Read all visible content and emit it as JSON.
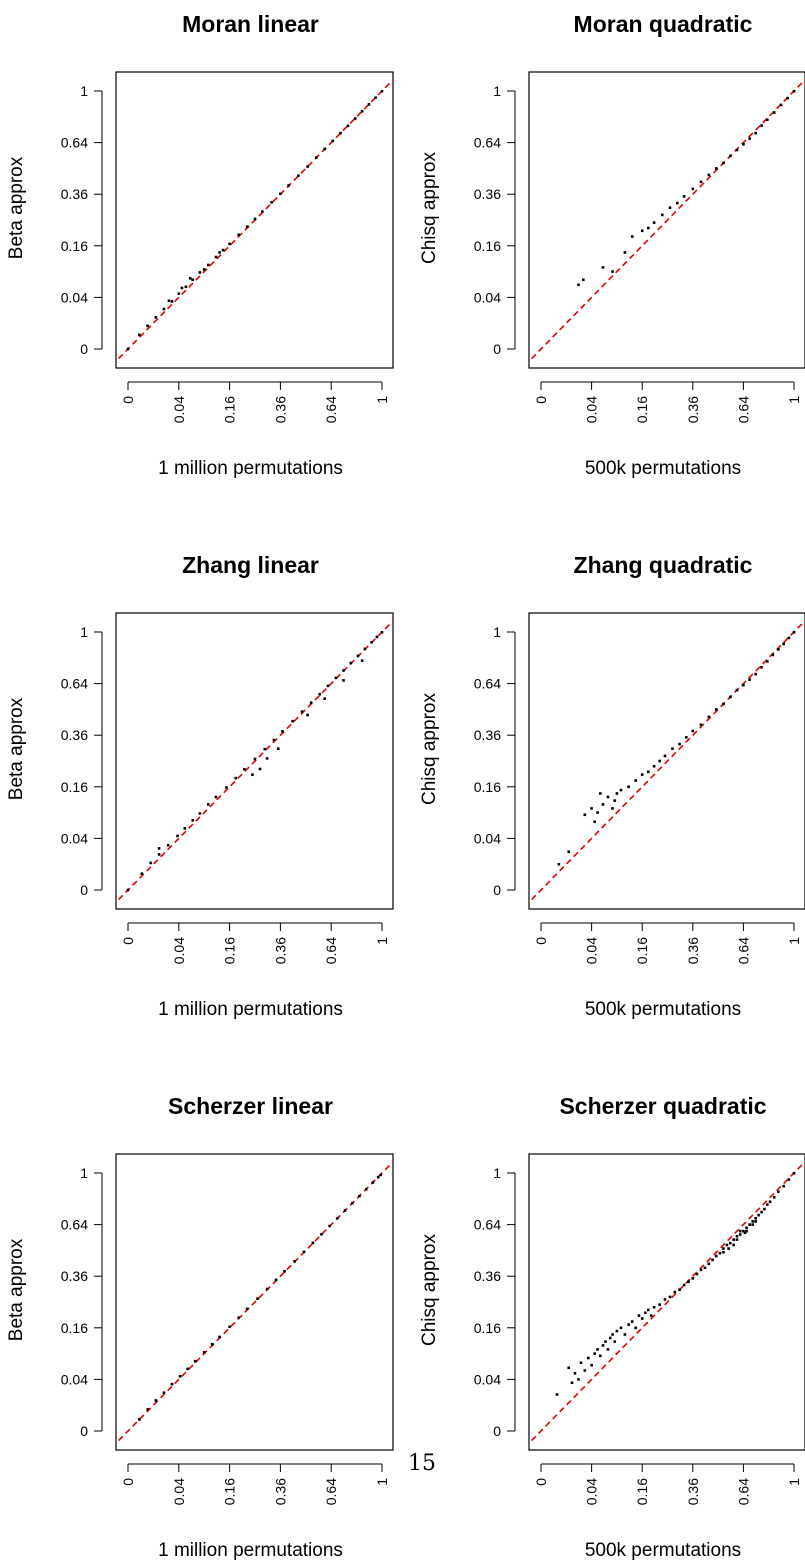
{
  "page_number": "15",
  "chart_data": [
    {
      "type": "scatter",
      "title": "Moran linear",
      "xlabel": "1 million permutations",
      "ylabel": "Beta approx",
      "scale": "sqrt",
      "xlim": [
        0,
        1
      ],
      "ylim": [
        0,
        1
      ],
      "x_ticks": [
        "0",
        "0.04",
        "0.16",
        "0.36",
        "0.64",
        "1"
      ],
      "y_ticks": [
        "0",
        "0.04",
        "0.16",
        "0.36",
        "0.64",
        "1"
      ],
      "reference_line": {
        "style": "dashed",
        "color": "#e00000",
        "slope": 1,
        "intercept": 0
      },
      "point_color": "#000000",
      "points": [
        [
          0.0,
          0.0
        ],
        [
          0.002,
          0.003
        ],
        [
          0.006,
          0.008
        ],
        [
          0.012,
          0.015
        ],
        [
          0.02,
          0.024
        ],
        [
          0.03,
          0.034
        ],
        [
          0.04,
          0.046
        ],
        [
          0.052,
          0.058
        ],
        [
          0.065,
          0.072
        ],
        [
          0.08,
          0.088
        ],
        [
          0.1,
          0.106
        ],
        [
          0.12,
          0.127
        ],
        [
          0.14,
          0.147
        ],
        [
          0.16,
          0.166
        ],
        [
          0.19,
          0.196
        ],
        [
          0.22,
          0.225
        ],
        [
          0.25,
          0.254
        ],
        [
          0.28,
          0.284
        ],
        [
          0.32,
          0.323
        ],
        [
          0.36,
          0.362
        ],
        [
          0.4,
          0.402
        ],
        [
          0.45,
          0.451
        ],
        [
          0.5,
          0.5
        ],
        [
          0.55,
          0.551
        ],
        [
          0.6,
          0.601
        ],
        [
          0.65,
          0.651
        ],
        [
          0.7,
          0.7
        ],
        [
          0.75,
          0.748
        ],
        [
          0.8,
          0.798
        ],
        [
          0.85,
          0.849
        ],
        [
          0.9,
          0.899
        ],
        [
          0.95,
          0.949
        ],
        [
          1.0,
          0.998
        ],
        [
          0.026,
          0.035
        ],
        [
          0.045,
          0.056
        ],
        [
          0.09,
          0.095
        ],
        [
          0.13,
          0.14
        ],
        [
          0.06,
          0.075
        ]
      ]
    },
    {
      "type": "scatter",
      "title": "Moran quadratic",
      "xlabel": "500k permutations",
      "ylabel": "Chisq approx",
      "scale": "sqrt",
      "xlim": [
        0,
        1
      ],
      "ylim": [
        0,
        1
      ],
      "x_ticks": [
        "0",
        "0.04",
        "0.16",
        "0.36",
        "0.64",
        "1"
      ],
      "y_ticks": [
        "0",
        "0.04",
        "0.16",
        "0.36",
        "0.64",
        "1"
      ],
      "reference_line": {
        "style": "dashed",
        "color": "#e00000",
        "slope": 1,
        "intercept": 0
      },
      "point_color": "#000000",
      "points": [
        [
          0.022,
          0.062
        ],
        [
          0.028,
          0.072
        ],
        [
          0.06,
          0.1
        ],
        [
          0.08,
          0.09
        ],
        [
          0.11,
          0.14
        ],
        [
          0.13,
          0.19
        ],
        [
          0.16,
          0.21
        ],
        [
          0.18,
          0.22
        ],
        [
          0.2,
          0.24
        ],
        [
          0.23,
          0.27
        ],
        [
          0.26,
          0.3
        ],
        [
          0.29,
          0.32
        ],
        [
          0.32,
          0.35
        ],
        [
          0.36,
          0.385
        ],
        [
          0.4,
          0.42
        ],
        [
          0.44,
          0.455
        ],
        [
          0.48,
          0.49
        ],
        [
          0.52,
          0.52
        ],
        [
          0.56,
          0.56
        ],
        [
          0.6,
          0.595
        ],
        [
          0.64,
          0.63
        ],
        [
          0.68,
          0.665
        ],
        [
          0.72,
          0.7
        ],
        [
          0.76,
          0.75
        ],
        [
          0.8,
          0.79
        ],
        [
          0.85,
          0.84
        ],
        [
          0.9,
          0.895
        ],
        [
          0.95,
          0.945
        ],
        [
          1.0,
          0.998
        ]
      ]
    },
    {
      "type": "scatter",
      "title": "Zhang linear",
      "xlabel": "1 million permutations",
      "ylabel": "Beta approx",
      "scale": "sqrt",
      "xlim": [
        0,
        1
      ],
      "ylim": [
        0,
        1
      ],
      "x_ticks": [
        "0",
        "0.04",
        "0.16",
        "0.36",
        "0.64",
        "1"
      ],
      "y_ticks": [
        "0",
        "0.04",
        "0.16",
        "0.36",
        "0.64",
        "1"
      ],
      "reference_line": {
        "style": "dashed",
        "color": "#e00000",
        "slope": 1,
        "intercept": 0
      },
      "point_color": "#000000",
      "points": [
        [
          0.0,
          0.0
        ],
        [
          0.003,
          0.004
        ],
        [
          0.008,
          0.011
        ],
        [
          0.015,
          0.019
        ],
        [
          0.025,
          0.03
        ],
        [
          0.038,
          0.044
        ],
        [
          0.05,
          0.057
        ],
        [
          0.065,
          0.073
        ],
        [
          0.08,
          0.088
        ],
        [
          0.1,
          0.11
        ],
        [
          0.12,
          0.13
        ],
        [
          0.15,
          0.158
        ],
        [
          0.18,
          0.188
        ],
        [
          0.21,
          0.219
        ],
        [
          0.25,
          0.258
        ],
        [
          0.29,
          0.298
        ],
        [
          0.33,
          0.338
        ],
        [
          0.37,
          0.378
        ],
        [
          0.42,
          0.428
        ],
        [
          0.47,
          0.478
        ],
        [
          0.52,
          0.527
        ],
        [
          0.57,
          0.576
        ],
        [
          0.62,
          0.626
        ],
        [
          0.67,
          0.676
        ],
        [
          0.72,
          0.724
        ],
        [
          0.77,
          0.774
        ],
        [
          0.82,
          0.824
        ],
        [
          0.87,
          0.873
        ],
        [
          0.92,
          0.922
        ],
        [
          0.96,
          0.962
        ],
        [
          1.0,
          0.998
        ],
        [
          0.24,
          0.2
        ],
        [
          0.27,
          0.22
        ],
        [
          0.3,
          0.26
        ],
        [
          0.35,
          0.3
        ],
        [
          0.5,
          0.46
        ],
        [
          0.6,
          0.55
        ],
        [
          0.72,
          0.66
        ],
        [
          0.85,
          0.79
        ],
        [
          0.015,
          0.026
        ]
      ]
    },
    {
      "type": "scatter",
      "title": "Zhang quadratic",
      "xlabel": "500k permutations",
      "ylabel": "Chisq approx",
      "scale": "sqrt",
      "xlim": [
        0,
        1
      ],
      "ylim": [
        0,
        1
      ],
      "x_ticks": [
        "0",
        "0.04",
        "0.16",
        "0.36",
        "0.64",
        "1"
      ],
      "y_ticks": [
        "0",
        "0.04",
        "0.16",
        "0.36",
        "0.64",
        "1"
      ],
      "reference_line": {
        "style": "dashed",
        "color": "#e00000",
        "slope": 1,
        "intercept": 0
      },
      "point_color": "#000000",
      "points": [
        [
          0.005,
          0.01
        ],
        [
          0.012,
          0.022
        ],
        [
          0.03,
          0.085
        ],
        [
          0.04,
          0.1
        ],
        [
          0.045,
          0.07
        ],
        [
          0.05,
          0.09
        ],
        [
          0.06,
          0.11
        ],
        [
          0.07,
          0.13
        ],
        [
          0.08,
          0.1
        ],
        [
          0.09,
          0.14
        ],
        [
          0.1,
          0.15
        ],
        [
          0.12,
          0.16
        ],
        [
          0.14,
          0.18
        ],
        [
          0.16,
          0.2
        ],
        [
          0.18,
          0.21
        ],
        [
          0.2,
          0.23
        ],
        [
          0.22,
          0.25
        ],
        [
          0.24,
          0.27
        ],
        [
          0.27,
          0.3
        ],
        [
          0.3,
          0.32
        ],
        [
          0.33,
          0.35
        ],
        [
          0.36,
          0.38
        ],
        [
          0.4,
          0.41
        ],
        [
          0.44,
          0.45
        ],
        [
          0.48,
          0.49
        ],
        [
          0.52,
          0.52
        ],
        [
          0.56,
          0.56
        ],
        [
          0.6,
          0.6
        ],
        [
          0.64,
          0.63
        ],
        [
          0.68,
          0.665
        ],
        [
          0.72,
          0.7
        ],
        [
          0.76,
          0.745
        ],
        [
          0.8,
          0.785
        ],
        [
          0.84,
          0.83
        ],
        [
          0.88,
          0.87
        ],
        [
          0.92,
          0.91
        ],
        [
          0.96,
          0.955
        ],
        [
          1.0,
          0.998
        ],
        [
          0.055,
          0.14
        ],
        [
          0.085,
          0.12
        ]
      ]
    },
    {
      "type": "scatter",
      "title": "Scherzer linear",
      "xlabel": "1 million permutations",
      "ylabel": "Beta approx",
      "scale": "sqrt",
      "xlim": [
        0,
        1
      ],
      "ylim": [
        0,
        1
      ],
      "x_ticks": [
        "0",
        "0.04",
        "0.16",
        "0.36",
        "0.64",
        "1"
      ],
      "y_ticks": [
        "0",
        "0.04",
        "0.16",
        "0.36",
        "0.64",
        "1"
      ],
      "reference_line": {
        "style": "dashed",
        "color": "#e00000",
        "slope": 1,
        "intercept": 0
      },
      "point_color": "#000000",
      "points": [
        [
          0.002,
          0.002
        ],
        [
          0.006,
          0.007
        ],
        [
          0.012,
          0.014
        ],
        [
          0.02,
          0.022
        ],
        [
          0.03,
          0.033
        ],
        [
          0.042,
          0.045
        ],
        [
          0.055,
          0.058
        ],
        [
          0.07,
          0.073
        ],
        [
          0.09,
          0.093
        ],
        [
          0.11,
          0.113
        ],
        [
          0.13,
          0.133
        ],
        [
          0.16,
          0.163
        ],
        [
          0.19,
          0.193
        ],
        [
          0.22,
          0.224
        ],
        [
          0.26,
          0.263
        ],
        [
          0.3,
          0.303
        ],
        [
          0.34,
          0.343
        ],
        [
          0.38,
          0.383
        ],
        [
          0.43,
          0.432
        ],
        [
          0.48,
          0.482
        ],
        [
          0.53,
          0.532
        ],
        [
          0.58,
          0.581
        ],
        [
          0.63,
          0.631
        ],
        [
          0.68,
          0.68
        ],
        [
          0.73,
          0.73
        ],
        [
          0.78,
          0.779
        ],
        [
          0.83,
          0.829
        ],
        [
          0.88,
          0.878
        ],
        [
          0.93,
          0.928
        ],
        [
          0.97,
          0.968
        ],
        [
          0.99,
          0.985
        ]
      ]
    },
    {
      "type": "scatter",
      "title": "Scherzer quadratic",
      "xlabel": "500k permutations",
      "ylabel": "Chisq approx",
      "scale": "sqrt",
      "xlim": [
        0,
        1
      ],
      "ylim": [
        0,
        1
      ],
      "x_ticks": [
        "0",
        "0.04",
        "0.16",
        "0.36",
        "0.64",
        "1"
      ],
      "y_ticks": [
        "0",
        "0.04",
        "0.16",
        "0.36",
        "0.64",
        "1"
      ],
      "reference_line": {
        "style": "dashed",
        "color": "#e00000",
        "slope": 1,
        "intercept": 0
      },
      "point_color": "#000000",
      "points": [
        [
          0.004,
          0.02
        ],
        [
          0.012,
          0.06
        ],
        [
          0.015,
          0.035
        ],
        [
          0.018,
          0.05
        ],
        [
          0.022,
          0.04
        ],
        [
          0.025,
          0.07
        ],
        [
          0.03,
          0.055
        ],
        [
          0.035,
          0.08
        ],
        [
          0.04,
          0.065
        ],
        [
          0.045,
          0.09
        ],
        [
          0.05,
          0.1
        ],
        [
          0.055,
          0.085
        ],
        [
          0.06,
          0.11
        ],
        [
          0.065,
          0.12
        ],
        [
          0.07,
          0.1
        ],
        [
          0.075,
          0.13
        ],
        [
          0.08,
          0.14
        ],
        [
          0.085,
          0.12
        ],
        [
          0.09,
          0.15
        ],
        [
          0.1,
          0.16
        ],
        [
          0.11,
          0.14
        ],
        [
          0.12,
          0.17
        ],
        [
          0.13,
          0.18
        ],
        [
          0.14,
          0.16
        ],
        [
          0.15,
          0.2
        ],
        [
          0.16,
          0.19
        ],
        [
          0.17,
          0.21
        ],
        [
          0.18,
          0.22
        ],
        [
          0.19,
          0.2
        ],
        [
          0.2,
          0.23
        ],
        [
          0.22,
          0.24
        ],
        [
          0.24,
          0.26
        ],
        [
          0.26,
          0.27
        ],
        [
          0.28,
          0.29
        ],
        [
          0.3,
          0.3
        ],
        [
          0.32,
          0.32
        ],
        [
          0.34,
          0.335
        ],
        [
          0.36,
          0.35
        ],
        [
          0.38,
          0.37
        ],
        [
          0.4,
          0.39
        ],
        [
          0.42,
          0.4
        ],
        [
          0.44,
          0.42
        ],
        [
          0.46,
          0.44
        ],
        [
          0.48,
          0.46
        ],
        [
          0.5,
          0.475
        ],
        [
          0.52,
          0.5
        ],
        [
          0.54,
          0.52
        ],
        [
          0.56,
          0.53
        ],
        [
          0.58,
          0.55
        ],
        [
          0.6,
          0.57
        ],
        [
          0.62,
          0.58
        ],
        [
          0.64,
          0.6
        ],
        [
          0.66,
          0.62
        ],
        [
          0.68,
          0.64
        ],
        [
          0.7,
          0.66
        ],
        [
          0.72,
          0.68
        ],
        [
          0.74,
          0.7
        ],
        [
          0.76,
          0.72
        ],
        [
          0.78,
          0.74
        ],
        [
          0.8,
          0.77
        ],
        [
          0.82,
          0.79
        ],
        [
          0.85,
          0.82
        ],
        [
          0.88,
          0.86
        ],
        [
          0.92,
          0.9
        ],
        [
          0.96,
          0.95
        ],
        [
          1.0,
          0.998
        ],
        [
          0.55,
          0.5
        ],
        [
          0.6,
          0.55
        ],
        [
          0.65,
          0.59
        ],
        [
          0.7,
          0.64
        ],
        [
          0.62,
          0.6
        ],
        [
          0.58,
          0.52
        ],
        [
          0.52,
          0.48
        ],
        [
          0.66,
          0.6
        ],
        [
          0.72,
          0.66
        ]
      ]
    }
  ]
}
